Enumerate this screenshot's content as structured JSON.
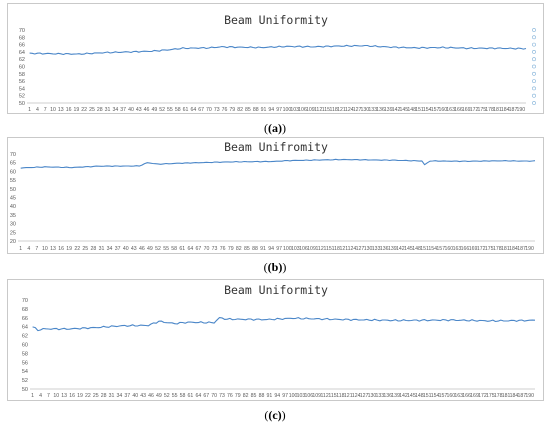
{
  "figure": {
    "captions": [
      "(a)",
      "(b)",
      "(c)"
    ]
  },
  "chart_data": [
    {
      "type": "line",
      "title": "Beam Uniformity",
      "ylim": [
        50,
        70
      ],
      "yticks": [
        "50",
        "52",
        "54",
        "56",
        "58",
        "60",
        "62",
        "64",
        "66",
        "68",
        "70"
      ],
      "grid": false,
      "line_color": "#4a86c8",
      "right_axis_markers": true,
      "x_tick_start": 1,
      "x_tick_step": 3,
      "x_tick_end": 190,
      "series": [
        {
          "anchors_x": [
            1,
            10,
            20,
            30,
            40,
            48,
            55,
            60,
            70,
            75,
            80,
            90,
            100,
            110,
            120,
            130,
            140,
            150,
            160,
            170,
            180,
            192
          ],
          "anchors_y": [
            63.6,
            63.5,
            63.4,
            63.8,
            64.0,
            64.2,
            64.6,
            65.0,
            65.1,
            65.4,
            65.3,
            65.2,
            65.5,
            65.4,
            65.6,
            65.7,
            65.3,
            65.1,
            65.2,
            65.0,
            65.0,
            64.9
          ]
        }
      ]
    },
    {
      "type": "line",
      "title": "Beam Unifromity",
      "ylim": [
        20,
        70
      ],
      "yticks": [
        "20",
        "25",
        "30",
        "35",
        "40",
        "45",
        "50",
        "55",
        "60",
        "65",
        "70"
      ],
      "grid": false,
      "line_color": "#4a86c8",
      "right_axis_markers": false,
      "x_tick_start": 1,
      "x_tick_step": 3,
      "x_tick_end": 190,
      "series": [
        {
          "anchors_x": [
            1,
            10,
            20,
            30,
            45,
            48,
            52,
            60,
            72,
            80,
            95,
            100,
            120,
            140,
            150,
            151,
            153,
            165,
            180,
            188,
            192
          ],
          "anchors_y": [
            62.0,
            62.6,
            62.2,
            63.0,
            63.1,
            65.0,
            64.2,
            64.7,
            65.2,
            65.5,
            65.7,
            66.2,
            66.8,
            66.4,
            66.0,
            63.8,
            66.0,
            65.8,
            66.1,
            65.9,
            66.0
          ]
        }
      ]
    },
    {
      "type": "line",
      "title": "Beam Uniformity",
      "ylim": [
        50,
        70
      ],
      "yticks": [
        "50",
        "52",
        "54",
        "56",
        "58",
        "60",
        "62",
        "64",
        "66",
        "68",
        "70"
      ],
      "grid": false,
      "line_color": "#4a86c8",
      "right_axis_markers": false,
      "x_tick_start": 1,
      "x_tick_step": 3,
      "x_tick_end": 190,
      "series": [
        {
          "anchors_x": [
            1,
            3,
            5,
            15,
            25,
            35,
            45,
            49,
            55,
            60,
            70,
            72,
            75,
            90,
            100,
            120,
            140,
            160,
            175,
            190,
            192
          ],
          "anchors_y": [
            64.0,
            63.2,
            63.5,
            63.5,
            63.8,
            64.2,
            64.3,
            65.2,
            64.7,
            65.0,
            64.9,
            66.0,
            65.7,
            65.6,
            65.9,
            65.6,
            65.4,
            65.5,
            65.3,
            65.4,
            65.5
          ]
        }
      ]
    }
  ]
}
